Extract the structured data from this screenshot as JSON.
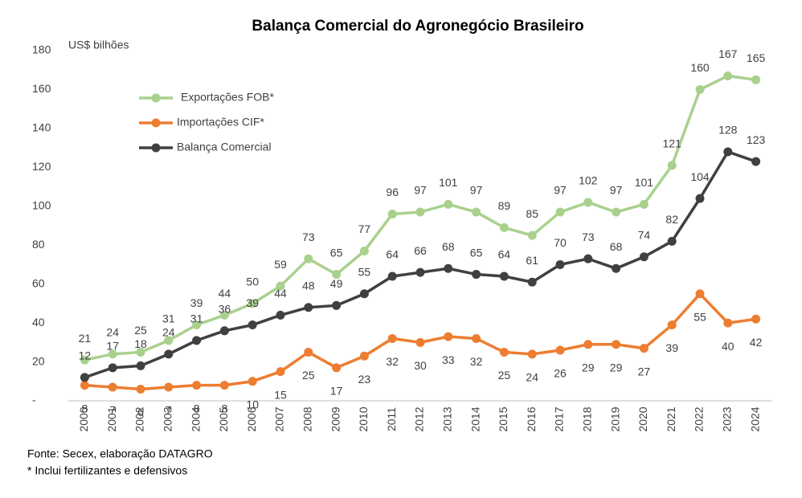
{
  "chart_data": {
    "type": "line",
    "title": "Balança Comercial do Agronegócio Brasileiro",
    "y_label": "US$ bilhões",
    "source": "Fonte: Secex, elaboração DATAGRO",
    "note": "* Inclui fertilizantes e defensivos",
    "categories": [
      "2000",
      "2001",
      "2002",
      "2003",
      "2004",
      "2005",
      "2006",
      "2007",
      "2008",
      "2009",
      "2010",
      "2011",
      "2012",
      "2013",
      "2014",
      "2015",
      "2016",
      "2017",
      "2018",
      "2019",
      "2020",
      "2021",
      "2022",
      "2023",
      "2024"
    ],
    "series": [
      {
        "name": "Exportações FOB*",
        "color": "#a9d18e",
        "values": [
          21,
          24,
          25,
          31,
          39,
          44,
          50,
          59,
          73,
          65,
          77,
          96,
          97,
          101,
          97,
          89,
          85,
          97,
          102,
          97,
          101,
          121,
          160,
          167,
          165
        ]
      },
      {
        "name": "Importações CIF*",
        "color": "#ed7d31",
        "values": [
          8,
          7,
          6,
          7,
          8,
          8,
          10,
          15,
          25,
          17,
          23,
          32,
          30,
          33,
          32,
          25,
          24,
          26,
          29,
          29,
          27,
          39,
          55,
          40,
          42
        ]
      },
      {
        "name": "Balança Comercial",
        "color": "#404040",
        "values": [
          12,
          17,
          18,
          24,
          31,
          36,
          39,
          44,
          48,
          49,
          55,
          64,
          66,
          68,
          65,
          64,
          61,
          70,
          73,
          68,
          74,
          82,
          104,
          128,
          123
        ]
      }
    ],
    "ylim": [
      0,
      180
    ],
    "yticks": [
      {
        "value": 0,
        "label": "-"
      },
      20,
      40,
      60,
      80,
      100,
      120,
      140,
      160,
      180
    ]
  }
}
